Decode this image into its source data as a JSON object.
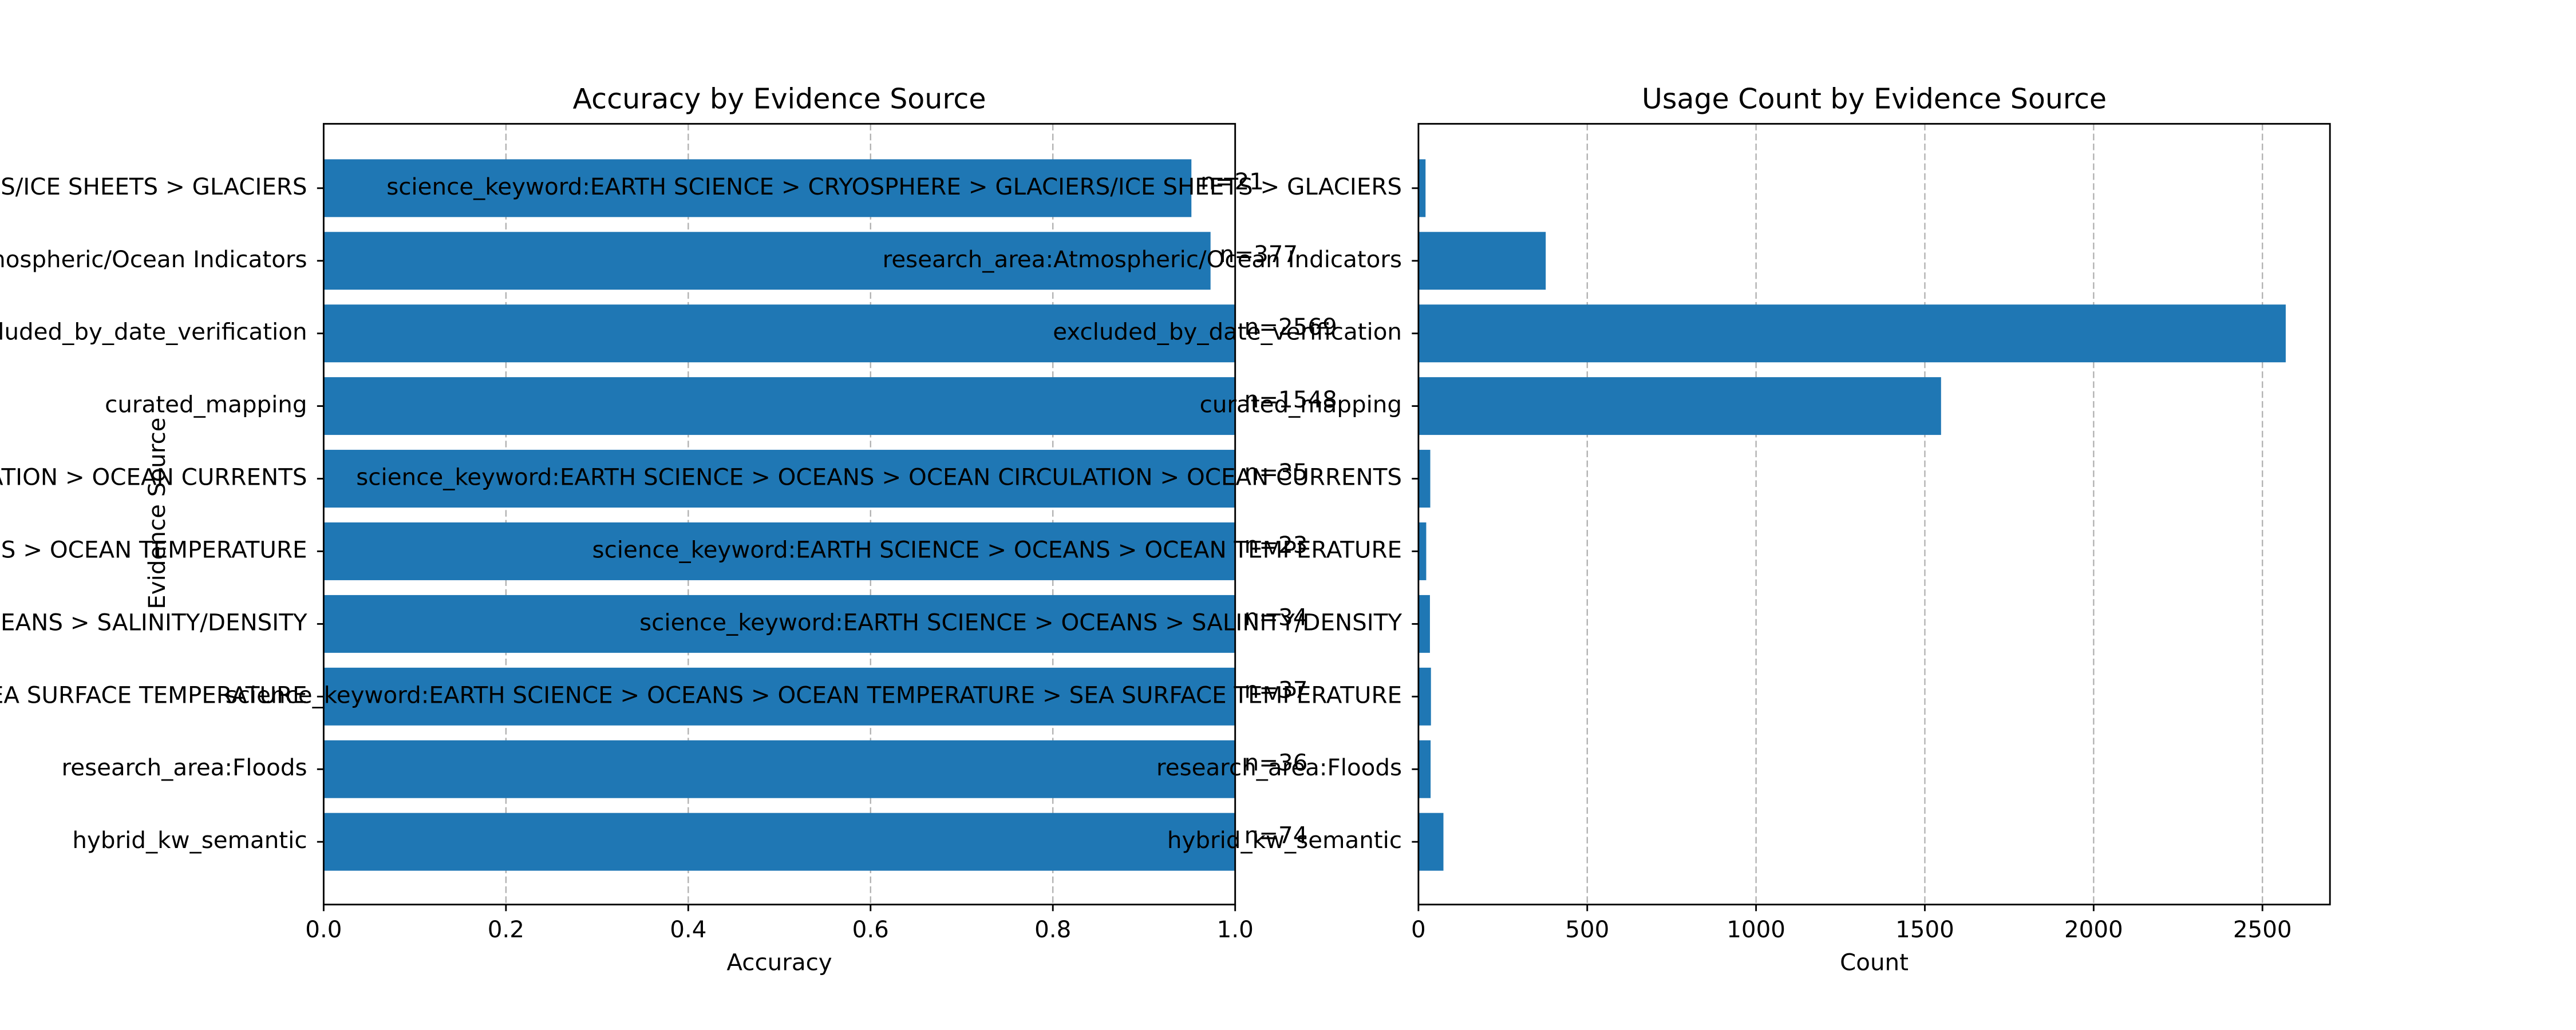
{
  "chart_data": [
    {
      "type": "barh",
      "title": "Accuracy by Evidence Source",
      "xlabel": "Accuracy",
      "ylabel": "Evidence Source",
      "categories": [
        "science_keyword:EARTH SCIENCE > CRYOSPHERE > GLACIERS/ICE SHEETS > GLACIERS",
        "research_area:Atmospheric/Ocean Indicators",
        "excluded_by_date_verification",
        "curated_mapping",
        "science_keyword:EARTH SCIENCE > OCEANS > OCEAN CIRCULATION > OCEAN CURRENTS",
        "science_keyword:EARTH SCIENCE > OCEANS > OCEAN TEMPERATURE",
        "science_keyword:EARTH SCIENCE > OCEANS > SALINITY/DENSITY",
        "science_keyword:EARTH SCIENCE > OCEANS > OCEAN TEMPERATURE > SEA SURFACE TEMPERATURE",
        "research_area:Floods",
        "hybrid_kw_semantic"
      ],
      "values": [
        0.952,
        0.973,
        1.0,
        1.0,
        1.0,
        1.0,
        1.0,
        1.0,
        1.0,
        1.0
      ],
      "annotations": [
        "n=21",
        "n=377",
        "n=2569",
        "n=1548",
        "n=35",
        "n=23",
        "n=34",
        "n=37",
        "n=36",
        "n=74"
      ],
      "color": "#1f77b4",
      "xlim": [
        0,
        1
      ],
      "xticks": [
        {
          "value": 0,
          "label": "0.0"
        },
        0.2,
        0.4,
        0.6,
        0.8,
        {
          "value": 1,
          "label": "1.0"
        }
      ],
      "grid": true
    },
    {
      "type": "barh",
      "title": "Usage Count by Evidence Source",
      "xlabel": "Count",
      "categories": [
        "science_keyword:EARTH SCIENCE > CRYOSPHERE > GLACIERS/ICE SHEETS > GLACIERS",
        "research_area:Atmospheric/Ocean Indicators",
        "excluded_by_date_verification",
        "curated_mapping",
        "science_keyword:EARTH SCIENCE > OCEANS > OCEAN CIRCULATION > OCEAN CURRENTS",
        "science_keyword:EARTH SCIENCE > OCEANS > OCEAN TEMPERATURE",
        "science_keyword:EARTH SCIENCE > OCEANS > SALINITY/DENSITY",
        "science_keyword:EARTH SCIENCE > OCEANS > OCEAN TEMPERATURE > SEA SURFACE TEMPERATURE",
        "research_area:Floods",
        "hybrid_kw_semantic"
      ],
      "values": [
        21,
        377,
        2569,
        1548,
        35,
        23,
        34,
        37,
        36,
        74
      ],
      "color": "#1f77b4",
      "xlim": [
        0,
        2700
      ],
      "xticks": [
        0,
        500,
        1000,
        1500,
        2000,
        2500
      ],
      "grid": true
    }
  ]
}
